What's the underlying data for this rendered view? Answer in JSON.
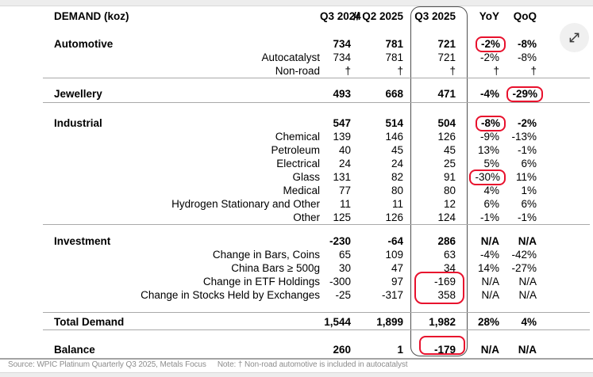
{
  "header": {
    "label": "DEMAND (koz)",
    "columns": [
      "Q3 2024",
      "// Q2 2025",
      "Q3 2025",
      "YoY",
      "QoQ"
    ]
  },
  "sections": [
    {
      "rows": [
        {
          "label": "Automotive",
          "bold": true,
          "values": [
            "734",
            "781",
            "721",
            "-2%",
            "-8%"
          ],
          "hl": [
            3
          ]
        },
        {
          "label": "Autocatalyst",
          "bold": false,
          "values": [
            "734",
            "781",
            "721",
            "-2%",
            "-8%"
          ]
        },
        {
          "label": "Non-road",
          "bold": false,
          "values": [
            "†",
            "†",
            "†",
            "†",
            "†"
          ]
        }
      ]
    },
    {
      "rows": [
        {
          "label": "Jewellery",
          "bold": true,
          "values": [
            "493",
            "668",
            "471",
            "-4%",
            "-29%"
          ],
          "hl": [
            4
          ]
        }
      ]
    },
    {
      "rows": [
        {
          "label": "Industrial",
          "bold": true,
          "values": [
            "547",
            "514",
            "504",
            "-8%",
            "-2%"
          ],
          "hl": [
            3
          ]
        },
        {
          "label": "Chemical",
          "bold": false,
          "values": [
            "139",
            "146",
            "126",
            "-9%",
            "-13%"
          ]
        },
        {
          "label": "Petroleum",
          "bold": false,
          "values": [
            "40",
            "45",
            "45",
            "13%",
            "-1%"
          ]
        },
        {
          "label": "Electrical",
          "bold": false,
          "values": [
            "24",
            "24",
            "25",
            "5%",
            "6%"
          ]
        },
        {
          "label": "Glass",
          "bold": false,
          "values": [
            "131",
            "82",
            "91",
            "-30%",
            "11%"
          ],
          "hl": [
            3
          ]
        },
        {
          "label": "Medical",
          "bold": false,
          "values": [
            "77",
            "80",
            "80",
            "4%",
            "1%"
          ]
        },
        {
          "label": "Hydrogen Stationary and Other",
          "bold": false,
          "values": [
            "11",
            "11",
            "12",
            "6%",
            "6%"
          ]
        },
        {
          "label": "Other",
          "bold": false,
          "values": [
            "125",
            "126",
            "124",
            "-1%",
            "-1%"
          ]
        }
      ]
    },
    {
      "rows": [
        {
          "label": "Investment",
          "bold": true,
          "values": [
            "-230",
            "-64",
            "286",
            "N/A",
            "N/A"
          ]
        },
        {
          "label": "Change in Bars, Coins",
          "bold": false,
          "values": [
            "65",
            "109",
            "63",
            "-4%",
            "-42%"
          ]
        },
        {
          "label": "China Bars ≥ 500g",
          "bold": false,
          "values": [
            "30",
            "47",
            "34",
            "14%",
            "-27%"
          ]
        },
        {
          "label": "Change in ETF Holdings",
          "bold": false,
          "values": [
            "-300",
            "97",
            "-169",
            "N/A",
            "N/A"
          ]
        },
        {
          "label": "Change in Stocks Held by Exchanges",
          "bold": false,
          "values": [
            "-25",
            "-317",
            "358",
            "N/A",
            "N/A"
          ]
        }
      ]
    },
    {
      "rows": [
        {
          "label": "Total Demand",
          "bold": true,
          "values": [
            "1,544",
            "1,899",
            "1,982",
            "28%",
            "4%"
          ]
        }
      ]
    },
    {
      "rows": [
        {
          "label": "Balance",
          "bold": true,
          "values": [
            "260",
            "1",
            "-179",
            "N/A",
            "N/A"
          ]
        }
      ]
    }
  ],
  "footer": {
    "source": "Source: WPIC Platinum Quarterly Q3 2025, Metals Focus",
    "note": "Note: † Non-road automotive is included in autocatalyst"
  },
  "icons": {
    "expand": "expand-diagonal-arrows-icon"
  },
  "colors": {
    "highlight_red": "#e8112d",
    "column_box_border": "#4f4f4f"
  }
}
